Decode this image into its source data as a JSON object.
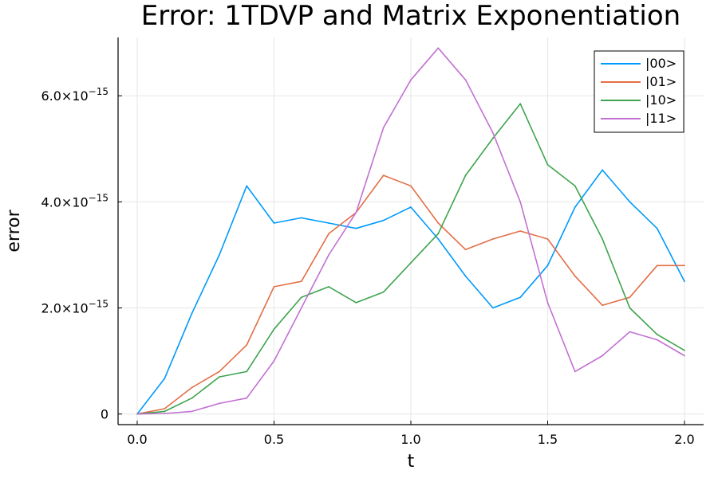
{
  "chart_data": {
    "type": "line",
    "title": "Error: 1TDVP and Matrix Exponentiation",
    "xlabel": "t",
    "ylabel": "error",
    "xlim": [
      -0.07,
      2.07
    ],
    "ylim": [
      -2e-16,
      7.1e-15
    ],
    "xticks": [
      0.0,
      0.5,
      1.0,
      1.5,
      2.0
    ],
    "xtick_labels": [
      "0.0",
      "0.5",
      "1.0",
      "1.5",
      "2.0"
    ],
    "yticks": [
      0,
      2e-15,
      4e-15,
      6e-15
    ],
    "ytick_labels": [
      {
        "mantissa": "0",
        "exp": ""
      },
      {
        "mantissa": "2.0×10",
        "exp": "−15"
      },
      {
        "mantissa": "4.0×10",
        "exp": "−15"
      },
      {
        "mantissa": "6.0×10",
        "exp": "−15"
      }
    ],
    "grid": true,
    "legend_position": "top-right",
    "x": [
      0.0,
      0.1,
      0.2,
      0.3,
      0.4,
      0.5,
      0.6,
      0.7,
      0.8,
      0.9,
      1.0,
      1.1,
      1.2,
      1.3,
      1.4,
      1.5,
      1.6,
      1.7,
      1.8,
      1.9,
      2.0
    ],
    "series": [
      {
        "name": "|00>",
        "color": "#009AFA",
        "values": [
          0,
          6.7e-16,
          1.9e-15,
          3e-15,
          4.3e-15,
          3.6e-15,
          3.7e-15,
          3.6e-15,
          3.5e-15,
          3.65e-15,
          3.9e-15,
          3.3e-15,
          2.6e-15,
          2e-15,
          2.2e-15,
          2.8e-15,
          3.9e-15,
          4.6e-15,
          4e-15,
          3.5e-15,
          2.5e-15
        ]
      },
      {
        "name": "|01>",
        "color": "#E36F47",
        "values": [
          0,
          1e-16,
          5e-16,
          8e-16,
          1.3e-15,
          2.4e-15,
          2.5e-15,
          3.4e-15,
          3.8e-15,
          4.5e-15,
          4.3e-15,
          3.6e-15,
          3.1e-15,
          3.3e-15,
          3.45e-15,
          3.3e-15,
          2.6e-15,
          2.05e-15,
          2.2e-15,
          2.8e-15,
          2.8e-15
        ]
      },
      {
        "name": "|10>",
        "color": "#3EA44E",
        "values": [
          0,
          5e-17,
          3e-16,
          7e-16,
          8e-16,
          1.6e-15,
          2.2e-15,
          2.4e-15,
          2.1e-15,
          2.3e-15,
          2.85e-15,
          3.4e-15,
          4.5e-15,
          5.2e-15,
          5.85e-15,
          4.7e-15,
          4.3e-15,
          3.3e-15,
          2e-15,
          1.5e-15,
          1.2e-15
        ]
      },
      {
        "name": "|11>",
        "color": "#C271D2",
        "values": [
          0,
          1e-17,
          5e-17,
          2e-16,
          3e-16,
          1e-15,
          2e-15,
          3e-15,
          3.8e-15,
          5.4e-15,
          6.3e-15,
          6.9e-15,
          6.3e-15,
          5.3e-15,
          4e-15,
          2.1e-15,
          8e-16,
          1.1e-15,
          1.55e-15,
          1.4e-15,
          1.1e-15
        ]
      }
    ]
  }
}
